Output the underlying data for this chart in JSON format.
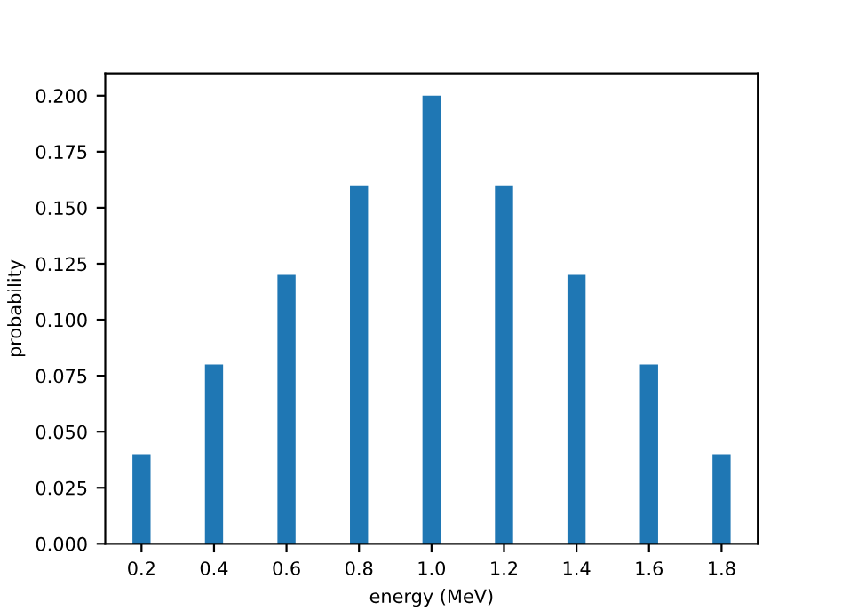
{
  "chart_data": {
    "type": "bar",
    "xlabel": "energy (MeV)",
    "ylabel": "probability",
    "x": [
      0.2,
      0.4,
      0.6,
      0.8,
      1.0,
      1.2,
      1.4,
      1.6,
      1.8
    ],
    "values": [
      0.04,
      0.08,
      0.12,
      0.16,
      0.2,
      0.16,
      0.12,
      0.08,
      0.04
    ],
    "color": "#1f77b4",
    "xlim": [
      0.1,
      1.9
    ],
    "ylim": [
      0,
      0.21
    ],
    "xticks": [
      0.2,
      0.4,
      0.6,
      0.8,
      {
        "value": 1,
        "label": "1.0"
      },
      1.2,
      1.4,
      1.6,
      1.8
    ],
    "yticks": [
      {
        "value": 0,
        "label": "0.000"
      },
      {
        "value": 0.025,
        "label": "0.025"
      },
      {
        "value": 0.05,
        "label": "0.050"
      },
      {
        "value": 0.075,
        "label": "0.075"
      },
      {
        "value": 0.1,
        "label": "0.100"
      },
      {
        "value": 0.125,
        "label": "0.125"
      },
      {
        "value": 0.15,
        "label": "0.150"
      },
      {
        "value": 0.175,
        "label": "0.175"
      },
      {
        "value": 0.2,
        "label": "0.200"
      }
    ],
    "grid": false
  }
}
